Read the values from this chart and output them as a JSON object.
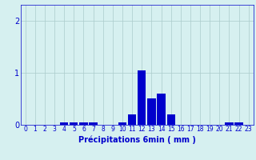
{
  "values": [
    0,
    0,
    0,
    0,
    0.05,
    0.05,
    0.05,
    0.05,
    0,
    0,
    0.05,
    0.2,
    1.05,
    0.5,
    0.6,
    0.2,
    0,
    0,
    0,
    0,
    0,
    0.05,
    0.05,
    0
  ],
  "bar_color": "#0000cc",
  "bg_color": "#d6f0f0",
  "grid_color": "#aacccc",
  "axis_color": "#0000cc",
  "xlabel": "Précipitations 6min ( mm )",
  "xlabel_fontsize": 7,
  "tick_fontsize": 5.5,
  "yticks": [
    0,
    1,
    2
  ],
  "ylim": [
    0,
    2.3
  ],
  "xlim": [
    -0.5,
    23.5
  ]
}
